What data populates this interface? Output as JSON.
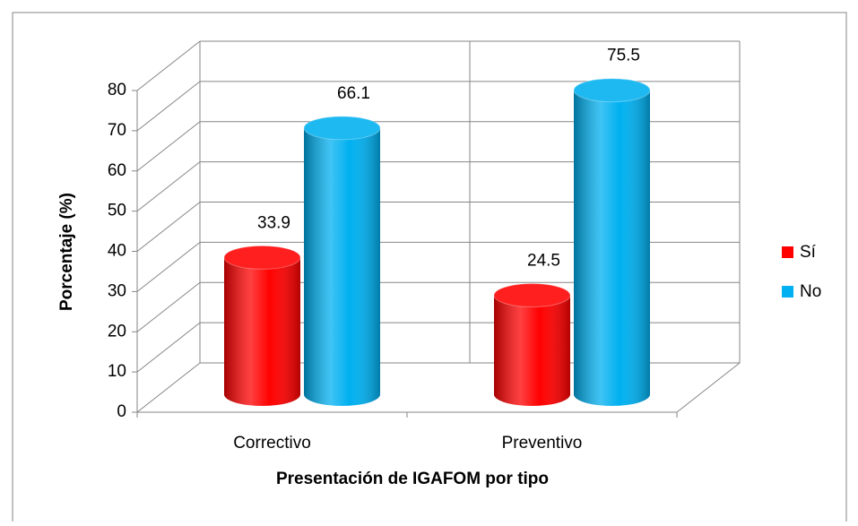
{
  "chart_data": {
    "type": "bar3d",
    "categories": [
      "Correctivo",
      "Preventivo"
    ],
    "series": [
      {
        "name": "Sí",
        "color": "#ff0000",
        "values": [
          33.9,
          24.5
        ]
      },
      {
        "name": "No",
        "color": "#00b0f0",
        "values": [
          66.1,
          75.5
        ]
      }
    ],
    "ylim": [
      0,
      80
    ],
    "yticks": [
      0,
      10,
      20,
      30,
      40,
      50,
      60,
      70,
      80
    ],
    "x_label": "Presentación de IGAFOM por tipo",
    "y_label": "Porcentaje (%)",
    "grid": true,
    "legend": "right"
  }
}
